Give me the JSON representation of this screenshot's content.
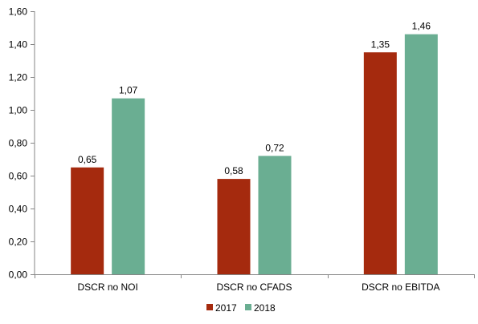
{
  "chart_data": {
    "type": "bar",
    "categories": [
      "DSCR no NOI",
      "DSCR no CFADS",
      "DSCR no EBITDA"
    ],
    "series": [
      {
        "name": "2017",
        "color": "#A52A0E",
        "values": [
          0.65,
          0.58,
          1.35
        ],
        "labels": [
          "0,65",
          "0,58",
          "1,35"
        ]
      },
      {
        "name": "2018",
        "color": "#6AAE92",
        "values": [
          1.07,
          0.72,
          1.46
        ],
        "labels": [
          "1,07",
          "0,72",
          "1,46"
        ]
      }
    ],
    "ylim": [
      0,
      1.6
    ],
    "yticks": [
      0,
      0.2,
      0.4,
      0.6,
      0.8,
      1.0,
      1.2,
      1.4,
      1.6
    ],
    "ytick_labels": [
      "0,00",
      "0,20",
      "0,40",
      "0,60",
      "0,80",
      "1,00",
      "1,20",
      "1,40",
      "1,60"
    ],
    "grid": false,
    "legend_position": "bottom"
  }
}
